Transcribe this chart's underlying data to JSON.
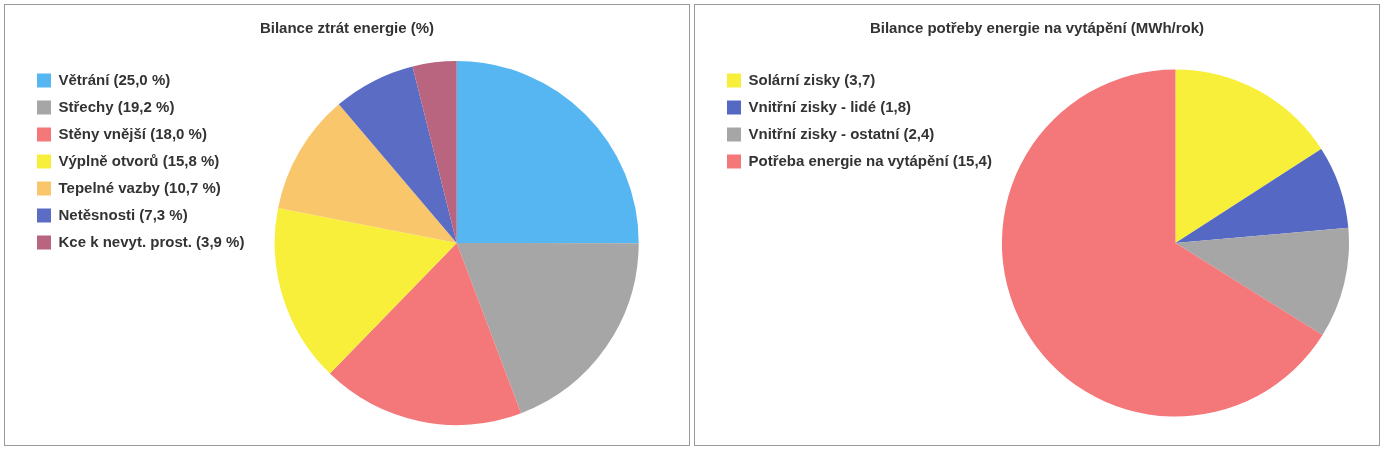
{
  "chart_data": [
    {
      "type": "pie",
      "title": "Bilance ztrát energie (%)",
      "legend": "left",
      "categories": [
        "Větrání (25,0 %)",
        "Střechy (19,2 %)",
        "Stěny vnější (18,0 %)",
        "Výplně otvorů (15,8 %)",
        "Tepelné vazby (10,7 %)",
        "Netěsnosti (7,3 %)",
        "Kce k nevyt. prost. (3,9 %)"
      ],
      "values": [
        25.0,
        19.2,
        18.0,
        15.8,
        10.7,
        7.3,
        3.9
      ],
      "colors": [
        "#55b6f2",
        "#a6a6a6",
        "#f4777a",
        "#f7ef3a",
        "#f9c66c",
        "#5b6cc4",
        "#b9657f"
      ]
    },
    {
      "type": "pie",
      "title": "Bilance potřeby energie na vytápění (MWh/rok)",
      "legend": "left",
      "categories": [
        "Solární zisky (3,7)",
        "Vnitřní zisky - lidé (1,8)",
        "Vnitřní zisky - ostatní (2,4)",
        "Potřeba energie na vytápění (15,4)"
      ],
      "values": [
        3.7,
        1.8,
        2.4,
        15.4
      ],
      "colors": [
        "#f7ef3a",
        "#5468c4",
        "#a6a6a6",
        "#f4777a"
      ]
    }
  ]
}
